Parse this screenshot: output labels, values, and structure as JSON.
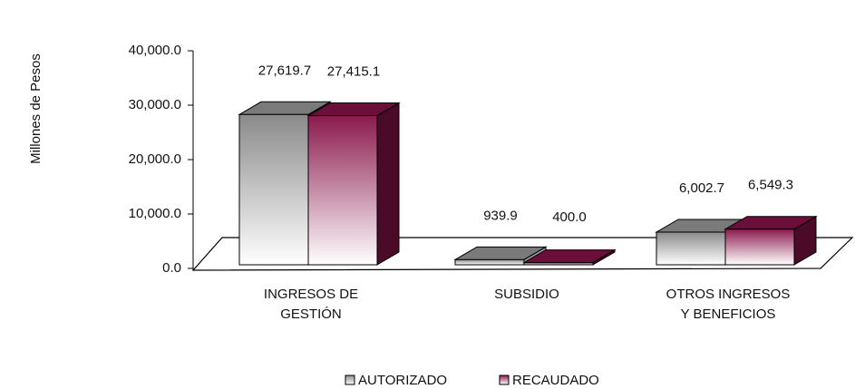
{
  "chart_data": {
    "type": "bar3d",
    "y_label": "Millones de Pesos",
    "categories": [
      "INGRESOS DE GESTIÓN",
      "SUBSIDIO",
      "OTROS INGRESOS Y BENEFICIOS"
    ],
    "series": [
      {
        "name": "AUTORIZADO",
        "color": "#808080",
        "values": [
          27619.7,
          939.9,
          6002.7
        ],
        "value_labels": [
          "27,619.7",
          "939.9",
          "6,002.7"
        ]
      },
      {
        "name": "RECAUDADO",
        "color": "#8b1a4e",
        "values": [
          27415.1,
          400.0,
          6549.3
        ],
        "value_labels": [
          "27,415.1",
          "400.0",
          "6,549.3"
        ]
      }
    ],
    "ylim": [
      0,
      40000
    ],
    "yticks": [
      {
        "value": 0,
        "label": "0.0"
      },
      {
        "value": 10000,
        "label": "10,000.0"
      },
      {
        "value": 20000,
        "label": "20,000.0"
      },
      {
        "value": 30000,
        "label": "30,000.0"
      },
      {
        "value": 40000,
        "label": "40,000.0"
      }
    ],
    "legend": "bottom"
  }
}
